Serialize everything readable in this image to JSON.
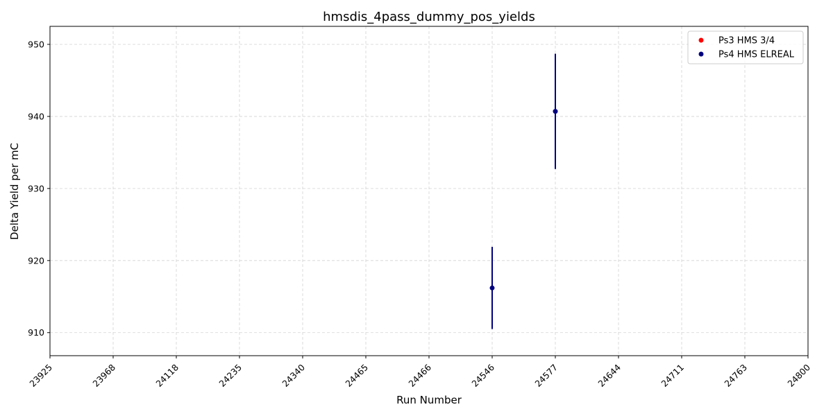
{
  "chart_data": {
    "type": "scatter",
    "title": "hmsdis_4pass_dummy_pos_yields",
    "xlabel": "Run Number",
    "ylabel": "Delta Yield per mC",
    "x_categories": [
      "23925",
      "23968",
      "24118",
      "24235",
      "24340",
      "24465",
      "24466",
      "24546",
      "24577",
      "24644",
      "24711",
      "24763",
      "24800"
    ],
    "ylim": [
      906.8,
      952.5
    ],
    "y_ticks": [
      910,
      920,
      930,
      940,
      950
    ],
    "grid": true,
    "legend_position": "top-right",
    "series": [
      {
        "name": "Ps3 HMS 3/4",
        "color": "#ff0000",
        "points": []
      },
      {
        "name": "Ps4 HMS ELREAL",
        "color": "#00007f",
        "points": [
          {
            "x": "24546",
            "y": 916.2,
            "err": 5.7
          },
          {
            "x": "24577",
            "y": 940.7,
            "err": 8.0
          }
        ]
      }
    ]
  }
}
